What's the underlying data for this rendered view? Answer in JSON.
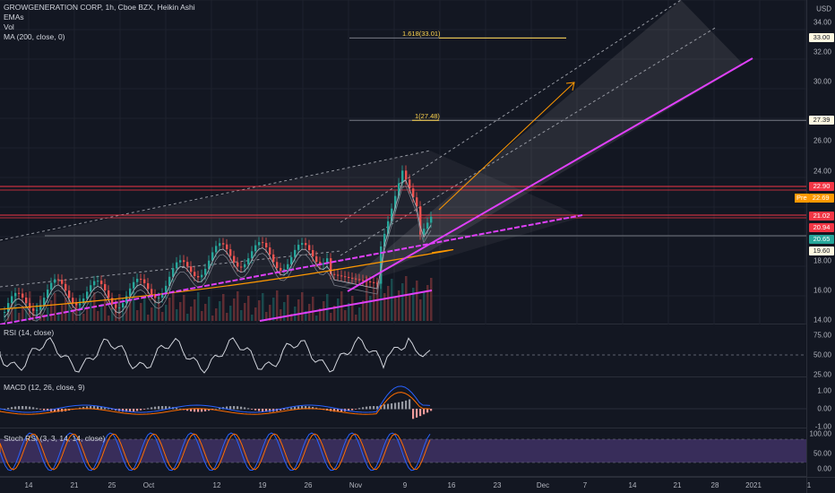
{
  "chart": {
    "symbol": "GROWGENERATION CORP, 1h, Cboe BZX, Heikin Ashi",
    "indicators": [
      "EMAs",
      "Vol",
      "MA (200, close, 0)"
    ],
    "currency": "USD"
  },
  "price_axis": {
    "ticks": [
      "34.00",
      "32.00",
      "30.00",
      "26.00",
      "24.00",
      "18.00",
      "16.00",
      "14.00"
    ],
    "tags": [
      {
        "label": "33.00",
        "color": "#fff8e1",
        "text": "#131722"
      },
      {
        "label": "27.39",
        "color": "#fff8e1",
        "text": "#131722"
      },
      {
        "label": "22.90",
        "color": "#f23645",
        "text": "#ffffff"
      },
      {
        "label": "22.69",
        "color": "#ff9800",
        "text": "#ffffff"
      },
      {
        "label": "21.02",
        "color": "#f23645",
        "text": "#ffffff"
      },
      {
        "label": "20.94",
        "color": "#f23645",
        "text": "#ffffff"
      },
      {
        "label": "20.65",
        "color": "#26a69a",
        "text": "#ffffff"
      },
      {
        "label": "19.60",
        "color": "#fff8e1",
        "text": "#131722"
      }
    ],
    "pre_label": "Pre"
  },
  "fib_levels": [
    {
      "label": "1.618(33.01)",
      "value": 33.01
    },
    {
      "label": "1(27.48)",
      "value": 27.48
    }
  ],
  "rsi": {
    "label": "RSI (14, close)",
    "ticks": [
      "75.00",
      "50.00",
      "25.00"
    ]
  },
  "macd": {
    "label": "MACD (12, 26, close, 9)",
    "ticks": [
      "1.00",
      "0.00",
      "-1.00"
    ]
  },
  "stoch": {
    "label": "Stoch RSI (3, 3, 14, 14, close)",
    "ticks": [
      "100.00",
      "50.00",
      "0.00"
    ]
  },
  "time_axis": [
    "14",
    "21",
    "25",
    "Oct",
    "12",
    "19",
    "26",
    "Nov",
    "9",
    "16",
    "23",
    "Dec",
    "7",
    "14",
    "21",
    "28",
    "2021",
    "1"
  ],
  "colors": {
    "background": "#131722",
    "up": "#26a69a",
    "down": "#ef5350",
    "trendline": "#e040fb",
    "resistance": "#f23645",
    "fib": "#ffd54f",
    "ma200": "#ff9800",
    "stoch_band": "#7e57c2"
  }
}
